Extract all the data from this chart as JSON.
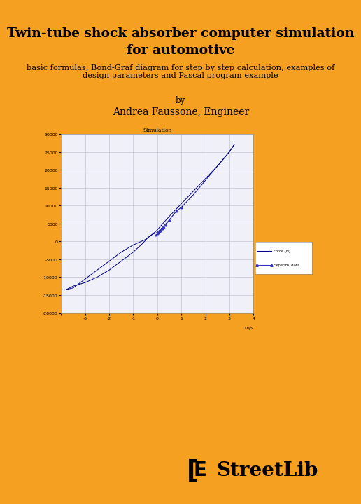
{
  "title_line1": "Twin-tube shock absorber computer simulation",
  "title_line2": "for automotive",
  "subtitle": "basic formulas, Bond-Graf diagram for step by step calculation, examples of\ndesign parameters and Pascal program example",
  "by_text": "by",
  "author": "Andrea Faussone, Engineer",
  "background_color": "#F5A020",
  "chart_bg": "#F0F0F8",
  "white_panel_color": "#FFFFFF",
  "chart_title": "Simulation",
  "xlabel": "m/s",
  "xlim": [
    -4,
    4
  ],
  "ylim": [
    -20000,
    30000
  ],
  "yticks": [
    -20000,
    -15000,
    -10000,
    -5000,
    0,
    5000,
    10000,
    15000,
    20000,
    25000,
    30000
  ],
  "xticks": [
    -4,
    -3,
    -2,
    -1,
    0,
    1,
    2,
    3,
    4
  ],
  "sim_color": "#000080",
  "exp_color": "#3333BB",
  "legend_label1": "Force (N)",
  "legend_label2": "Experim. data",
  "streetlib_text": "StreetLib"
}
